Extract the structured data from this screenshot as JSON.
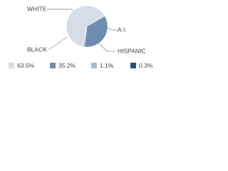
{
  "chart_data": {
    "type": "pie",
    "categories": [
      "WHITE",
      "HISPANIC",
      "A.I.",
      "BLACK"
    ],
    "values": [
      63.5,
      35.2,
      1.1,
      0.3
    ],
    "value_labels": [
      "63.5%",
      "35.2%",
      "1.1%",
      "0.3%"
    ],
    "colors": [
      "#d6dde7",
      "#6c8db0",
      "#a9bbd0",
      "#2e5077"
    ]
  }
}
